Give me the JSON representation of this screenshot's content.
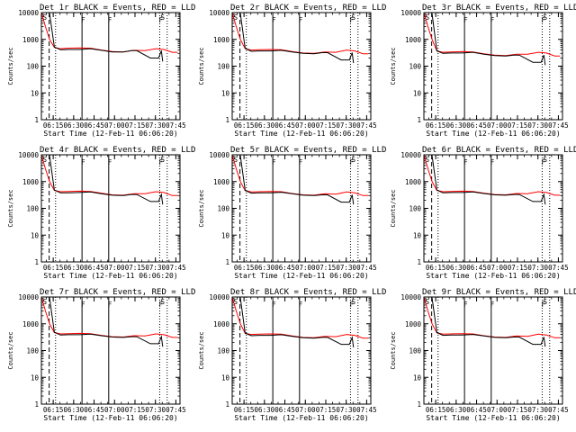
{
  "chart_data": {
    "type": "line",
    "layout": "3x3 grid of panels",
    "xlabel": "Start Time (12-Feb-11 06:06:20)",
    "ylabel": "Counts/sec",
    "yscale": "log",
    "ylim": [
      1,
      10000
    ],
    "ytick_labels": [
      "1",
      "10",
      "100",
      "1000",
      "10000"
    ],
    "xlim_minutes": [
      0,
      101.7
    ],
    "xtick_labels": [
      "06:15",
      "06:30",
      "06:45",
      "07:00",
      "07:15",
      "07:30",
      "07:45"
    ],
    "xtick_minutes": [
      8.67,
      23.67,
      38.67,
      53.67,
      68.67,
      83.67,
      98.67
    ],
    "vertical_markers": [
      {
        "name": "dashed",
        "style": "dashed",
        "x_minutes": 5.7
      },
      {
        "name": "dotted-1",
        "style": "dotted",
        "x_minutes": 10.4
      },
      {
        "name": "solid-1",
        "style": "solid",
        "x_minutes": 29.8
      },
      {
        "name": "solid-2",
        "style": "solid",
        "x_minutes": 49.4
      },
      {
        "name": "dotted-2",
        "style": "dotted",
        "x_minutes": 86.8
      },
      {
        "name": "dotted-3",
        "style": "dotted",
        "x_minutes": 92.3
      }
    ],
    "marker_labels": [
      {
        "text": "F",
        "x_minutes": 29.8
      },
      {
        "text": "F",
        "x_minutes": 49.4
      },
      {
        "text": "F",
        "x_minutes": 86.8
      }
    ],
    "corner_labels": [
      {
        "text": "S",
        "x_minutes": 1.0
      },
      {
        "text": "S",
        "x_minutes": 87.5
      }
    ],
    "series_styles": [
      {
        "name": "Events",
        "color": "#000000"
      },
      {
        "name": "LLD",
        "color": "#ff0000"
      }
    ],
    "panels": [
      {
        "title": "Det 1r BLACK = Events, RED = LLD",
        "events": {
          "x": [
            5.7,
            9.5,
            14,
            20,
            28,
            36,
            44,
            52,
            60,
            66,
            70,
            80,
            86,
            88,
            89
          ],
          "y": [
            12000,
            520,
            410,
            420,
            420,
            450,
            390,
            340,
            340,
            380,
            380,
            200,
            200,
            380,
            150
          ]
        },
        "lld": {
          "x": [
            0,
            3,
            6,
            9.5,
            14,
            20,
            28,
            36,
            44,
            52,
            60,
            68,
            76,
            84,
            90,
            96,
            100
          ],
          "y": [
            10000,
            3000,
            1000,
            500,
            450,
            470,
            480,
            470,
            400,
            350,
            340,
            390,
            380,
            450,
            420,
            330,
            330
          ]
        }
      },
      {
        "title": "Det 2r BLACK = Events, RED = LLD",
        "events": {
          "x": [
            5.7,
            9.5,
            14,
            20,
            28,
            36,
            44,
            52,
            60,
            66,
            70,
            80,
            86,
            88,
            89
          ],
          "y": [
            12000,
            460,
            360,
            370,
            370,
            390,
            340,
            300,
            290,
            320,
            320,
            170,
            170,
            320,
            130
          ]
        },
        "lld": {
          "x": [
            0,
            3,
            6,
            9.5,
            14,
            20,
            28,
            36,
            44,
            52,
            60,
            68,
            76,
            84,
            90,
            96,
            100
          ],
          "y": [
            10000,
            3000,
            1000,
            450,
            400,
            410,
            420,
            410,
            350,
            310,
            300,
            340,
            330,
            400,
            370,
            290,
            290
          ]
        }
      },
      {
        "title": "Det 3r BLACK = Events, RED = LLD",
        "events": {
          "x": [
            5.7,
            9.5,
            14,
            20,
            28,
            36,
            44,
            52,
            60,
            66,
            70,
            80,
            86,
            88,
            89
          ],
          "y": [
            12000,
            370,
            300,
            310,
            310,
            330,
            280,
            250,
            240,
            260,
            260,
            140,
            140,
            260,
            110
          ]
        },
        "lld": {
          "x": [
            0,
            3,
            6,
            9.5,
            14,
            20,
            28,
            36,
            44,
            52,
            60,
            68,
            76,
            84,
            90,
            96,
            100
          ],
          "y": [
            10000,
            3000,
            1000,
            370,
            330,
            340,
            350,
            340,
            290,
            260,
            250,
            280,
            280,
            330,
            310,
            240,
            240
          ]
        }
      },
      {
        "title": "Det 4r BLACK = Events, RED = LLD",
        "events": {
          "x": [
            5.7,
            9.5,
            14,
            20,
            28,
            36,
            44,
            52,
            60,
            66,
            70,
            80,
            86,
            88,
            89
          ],
          "y": [
            12000,
            480,
            380,
            380,
            390,
            410,
            350,
            310,
            300,
            330,
            330,
            180,
            180,
            330,
            140
          ]
        },
        "lld": {
          "x": [
            0,
            3,
            6,
            9.5,
            14,
            20,
            28,
            36,
            44,
            52,
            60,
            68,
            76,
            84,
            90,
            96,
            100
          ],
          "y": [
            10000,
            3000,
            1000,
            470,
            420,
            430,
            440,
            430,
            370,
            320,
            310,
            350,
            350,
            420,
            390,
            300,
            300
          ]
        }
      },
      {
        "title": "Det 5r BLACK = Events, RED = LLD",
        "events": {
          "x": [
            5.7,
            9.5,
            14,
            20,
            28,
            36,
            44,
            52,
            60,
            66,
            70,
            80,
            86,
            88,
            89
          ],
          "y": [
            12000,
            470,
            370,
            380,
            380,
            400,
            350,
            310,
            300,
            320,
            320,
            170,
            170,
            320,
            140
          ]
        },
        "lld": {
          "x": [
            0,
            3,
            6,
            9.5,
            14,
            20,
            28,
            36,
            44,
            52,
            60,
            68,
            76,
            84,
            90,
            96,
            100
          ],
          "y": [
            10000,
            3000,
            1000,
            460,
            410,
            420,
            430,
            420,
            360,
            320,
            310,
            350,
            340,
            410,
            380,
            300,
            300
          ]
        }
      },
      {
        "title": "Det 6r BLACK = Events, RED = LLD",
        "events": {
          "x": [
            5.7,
            9.5,
            14,
            20,
            28,
            36,
            44,
            52,
            60,
            66,
            70,
            80,
            86,
            88,
            89
          ],
          "y": [
            12000,
            480,
            380,
            390,
            390,
            410,
            360,
            320,
            310,
            330,
            330,
            180,
            180,
            330,
            140
          ]
        },
        "lld": {
          "x": [
            0,
            3,
            6,
            9.5,
            14,
            20,
            28,
            36,
            44,
            52,
            60,
            68,
            76,
            84,
            90,
            96,
            100
          ],
          "y": [
            10000,
            3000,
            1000,
            470,
            420,
            430,
            440,
            430,
            370,
            330,
            320,
            360,
            350,
            420,
            390,
            310,
            310
          ]
        }
      },
      {
        "title": "Det 7r BLACK = Events, RED = LLD",
        "events": {
          "x": [
            5.7,
            9.5,
            14,
            20,
            28,
            36,
            44,
            52,
            60,
            66,
            70,
            80,
            86,
            88,
            89
          ],
          "y": [
            12000,
            480,
            380,
            390,
            390,
            410,
            360,
            320,
            310,
            330,
            330,
            180,
            180,
            330,
            140
          ]
        },
        "lld": {
          "x": [
            0,
            3,
            6,
            9.5,
            14,
            20,
            28,
            36,
            44,
            52,
            60,
            68,
            76,
            84,
            90,
            96,
            100
          ],
          "y": [
            10000,
            3000,
            1000,
            470,
            420,
            430,
            440,
            430,
            370,
            330,
            320,
            360,
            350,
            420,
            390,
            310,
            310
          ]
        }
      },
      {
        "title": "Det 8r BLACK = Events, RED = LLD",
        "events": {
          "x": [
            5.7,
            9.5,
            14,
            20,
            28,
            36,
            44,
            52,
            60,
            66,
            70,
            80,
            86,
            88,
            89
          ],
          "y": [
            12000,
            450,
            360,
            370,
            370,
            390,
            340,
            300,
            290,
            310,
            310,
            170,
            170,
            310,
            130
          ]
        },
        "lld": {
          "x": [
            0,
            3,
            6,
            9.5,
            14,
            20,
            28,
            36,
            44,
            52,
            60,
            68,
            76,
            84,
            90,
            96,
            100
          ],
          "y": [
            10000,
            3000,
            1000,
            440,
            400,
            410,
            420,
            410,
            350,
            310,
            300,
            340,
            330,
            400,
            370,
            290,
            290
          ]
        }
      },
      {
        "title": "Det 9r BLACK = Events, RED = LLD",
        "events": {
          "x": [
            5.7,
            9.5,
            14,
            20,
            28,
            36,
            44,
            52,
            60,
            66,
            70,
            80,
            86,
            88,
            89
          ],
          "y": [
            12000,
            470,
            370,
            380,
            380,
            400,
            350,
            310,
            300,
            320,
            320,
            170,
            170,
            320,
            140
          ]
        },
        "lld": {
          "x": [
            0,
            3,
            6,
            9.5,
            14,
            20,
            28,
            36,
            44,
            52,
            60,
            68,
            76,
            84,
            90,
            96,
            100
          ],
          "y": [
            10000,
            3000,
            1000,
            460,
            410,
            420,
            430,
            420,
            360,
            320,
            310,
            350,
            340,
            410,
            380,
            300,
            300
          ]
        }
      }
    ]
  }
}
